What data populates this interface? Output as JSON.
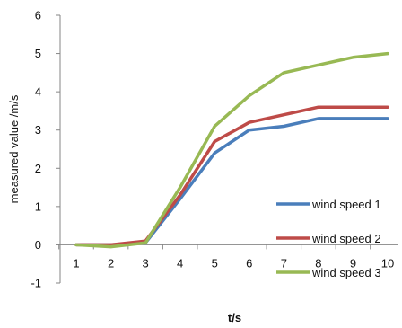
{
  "chart_data": {
    "type": "line",
    "xlabel": "t/s",
    "ylabel": "measured value /m/s",
    "x": [
      1,
      2,
      3,
      4,
      5,
      6,
      7,
      8,
      9,
      10
    ],
    "xticks": [
      "1",
      "2",
      "3",
      "4",
      "5",
      "6",
      "7",
      "8",
      "9",
      "10"
    ],
    "ylim": [
      -1,
      6
    ],
    "yticks": [
      -1,
      0,
      1,
      2,
      3,
      4,
      5,
      6
    ],
    "grid": false,
    "legend_position": "right",
    "series": [
      {
        "name": "wind speed 1",
        "color": "#4a7ebb",
        "values": [
          0,
          0,
          0.05,
          1.2,
          2.4,
          3.0,
          3.1,
          3.3,
          3.3,
          3.3
        ]
      },
      {
        "name": "wind speed 2",
        "color": "#be4b48",
        "values": [
          0,
          0,
          0.1,
          1.3,
          2.7,
          3.2,
          3.4,
          3.6,
          3.6,
          3.6
        ]
      },
      {
        "name": "wind speed 3",
        "color": "#98b954",
        "values": [
          0,
          -0.05,
          0.05,
          1.5,
          3.1,
          3.9,
          4.5,
          4.7,
          4.9,
          5.0
        ]
      }
    ]
  }
}
